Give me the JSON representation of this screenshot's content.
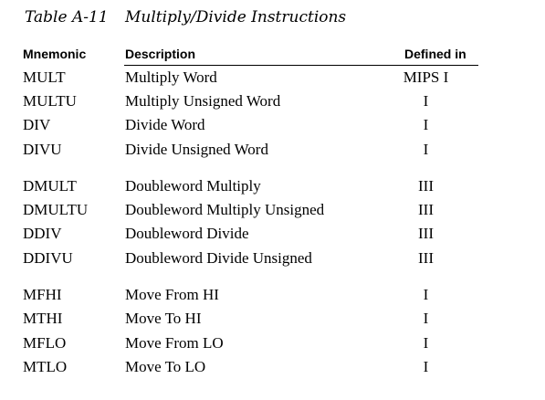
{
  "caption": {
    "number": "Table A-11",
    "title": "Multiply/Divide Instructions"
  },
  "table": {
    "headers": {
      "mnemonic": "Mnemonic",
      "description": "Description",
      "defined_in": "Defined in"
    },
    "groups": [
      [
        {
          "mnemonic": "MULT",
          "description": "Multiply Word",
          "defined_in": "MIPS I"
        },
        {
          "mnemonic": "MULTU",
          "description": "Multiply Unsigned Word",
          "defined_in": "I"
        },
        {
          "mnemonic": "DIV",
          "description": "Divide Word",
          "defined_in": "I"
        },
        {
          "mnemonic": "DIVU",
          "description": "Divide Unsigned Word",
          "defined_in": "I"
        }
      ],
      [
        {
          "mnemonic": "DMULT",
          "description": "Doubleword Multiply",
          "defined_in": "III"
        },
        {
          "mnemonic": "DMULTU",
          "description": "Doubleword Multiply Unsigned",
          "defined_in": "III"
        },
        {
          "mnemonic": "DDIV",
          "description": "Doubleword Divide",
          "defined_in": "III"
        },
        {
          "mnemonic": "DDIVU",
          "description": "Doubleword Divide Unsigned",
          "defined_in": "III"
        }
      ],
      [
        {
          "mnemonic": "MFHI",
          "description": "Move From HI",
          "defined_in": "I"
        },
        {
          "mnemonic": "MTHI",
          "description": "Move To HI",
          "defined_in": "I"
        },
        {
          "mnemonic": "MFLO",
          "description": "Move From LO",
          "defined_in": "I"
        },
        {
          "mnemonic": "MTLO",
          "description": "Move To LO",
          "defined_in": "I"
        }
      ]
    ]
  }
}
